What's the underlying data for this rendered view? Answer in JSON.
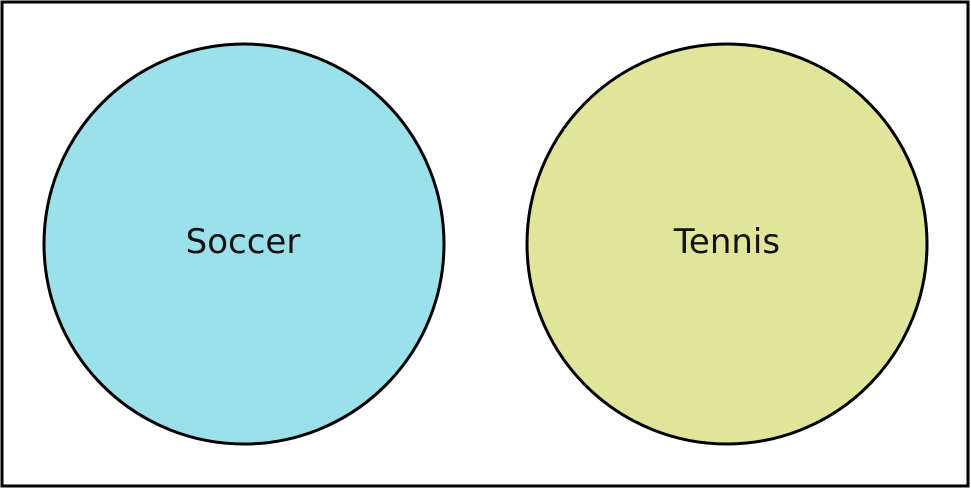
{
  "venn": {
    "sets": [
      {
        "label": "Soccer",
        "color": "#9ce0ea"
      },
      {
        "label": "Tennis",
        "color": "#e0e599"
      }
    ],
    "border_color": "#000000"
  }
}
